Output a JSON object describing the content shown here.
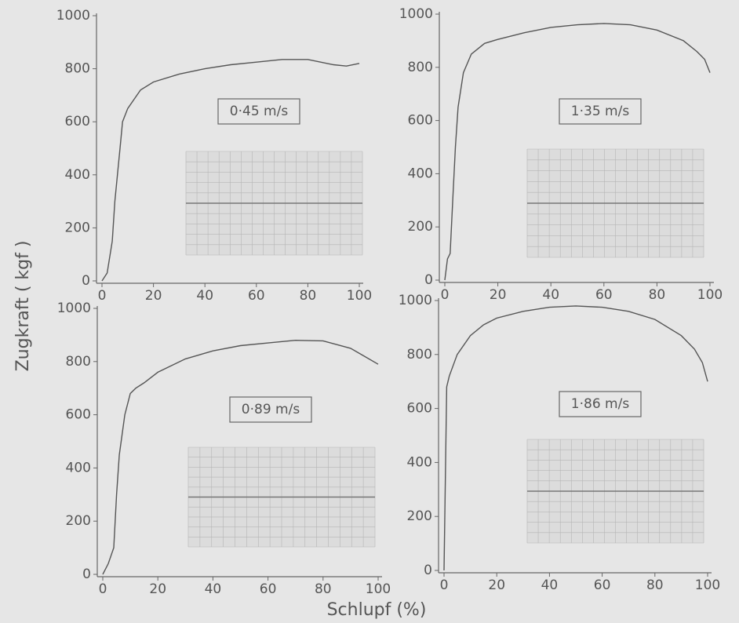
{
  "ylabel": "Zugkraft ( kgf )",
  "xlabel": "Schlupf (%)",
  "chart_data": [
    {
      "type": "line",
      "annotation": "0·45 m/s",
      "color": "#555555",
      "x": [
        0,
        2,
        4,
        5,
        6,
        7,
        8,
        10,
        15,
        20,
        30,
        40,
        50,
        60,
        70,
        80,
        90,
        95,
        100
      ],
      "values": [
        0,
        30,
        150,
        300,
        400,
        500,
        600,
        650,
        720,
        750,
        780,
        800,
        815,
        825,
        835,
        835,
        815,
        810,
        820
      ],
      "xlim": [
        0,
        100
      ],
      "xticks": [
        0,
        20,
        40,
        60,
        80,
        100
      ],
      "ylim": [
        0,
        1000
      ],
      "yticks": [
        0,
        200,
        400,
        600,
        800,
        1000
      ]
    },
    {
      "type": "line",
      "annotation": "1·35 m/s",
      "color": "#555555",
      "x": [
        0,
        1,
        2,
        3,
        4,
        5,
        7,
        10,
        15,
        20,
        30,
        40,
        50,
        60,
        70,
        80,
        90,
        95,
        98,
        100
      ],
      "values": [
        0,
        80,
        100,
        300,
        500,
        650,
        780,
        850,
        890,
        905,
        930,
        950,
        960,
        965,
        960,
        940,
        900,
        860,
        830,
        780
      ],
      "xlim": [
        0,
        100
      ],
      "xticks": [
        0,
        20,
        40,
        60,
        80,
        100
      ],
      "ylim": [
        0,
        1000
      ],
      "yticks": [
        0,
        200,
        400,
        600,
        800,
        1000
      ]
    },
    {
      "type": "line",
      "annotation": "0·89 m/s",
      "color": "#555555",
      "x": [
        0,
        2,
        4,
        5,
        6,
        8,
        10,
        12,
        15,
        20,
        30,
        40,
        50,
        60,
        70,
        80,
        90,
        95,
        100
      ],
      "values": [
        0,
        40,
        100,
        300,
        450,
        600,
        680,
        700,
        720,
        760,
        810,
        840,
        860,
        870,
        880,
        878,
        850,
        820,
        790
      ],
      "xlim": [
        0,
        100
      ],
      "xticks": [
        0,
        20,
        40,
        60,
        80,
        100
      ],
      "ylim": [
        0,
        1000
      ],
      "yticks": [
        0,
        200,
        400,
        600,
        800,
        1000
      ]
    },
    {
      "type": "line",
      "annotation": "1·86 m/s",
      "color": "#555555",
      "x": [
        0,
        1,
        2,
        5,
        10,
        15,
        20,
        30,
        40,
        50,
        60,
        70,
        80,
        90,
        95,
        98,
        100
      ],
      "values": [
        0,
        680,
        720,
        800,
        870,
        910,
        935,
        960,
        975,
        980,
        975,
        960,
        930,
        870,
        820,
        770,
        700
      ],
      "xlim": [
        0,
        100
      ],
      "xticks": [
        0,
        20,
        40,
        60,
        80,
        100
      ],
      "ylim": [
        0,
        1000
      ],
      "yticks": [
        0,
        200,
        400,
        600,
        800,
        1000
      ]
    }
  ]
}
